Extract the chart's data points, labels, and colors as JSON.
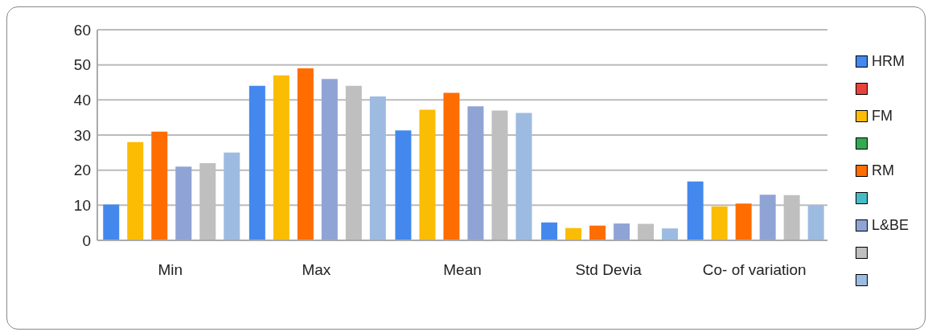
{
  "chart_data": {
    "type": "bar",
    "categories": [
      "Min",
      "Max",
      "Mean",
      "Std Devia",
      "Co- of variation"
    ],
    "series": [
      {
        "name": "HRM",
        "color": "#4488ee",
        "values": [
          10.2,
          44,
          31.3,
          5.1,
          16.8
        ]
      },
      {
        "color": "#e8433a",
        "values": [
          null,
          null,
          null,
          null,
          null
        ]
      },
      {
        "name": "FM",
        "color": "#fbbc04",
        "values": [
          28,
          47,
          37.2,
          3.5,
          9.7
        ]
      },
      {
        "color": "#34a853",
        "values": [
          null,
          null,
          null,
          null,
          null
        ]
      },
      {
        "name": "RM",
        "color": "#ff6d01",
        "values": [
          31,
          49,
          42,
          4.2,
          10.5
        ]
      },
      {
        "color": "#46bdc6",
        "values": [
          null,
          null,
          null,
          null,
          null
        ]
      },
      {
        "name": "L&BE",
        "color": "#8fa4d4",
        "values": [
          21,
          46,
          38.2,
          4.8,
          13
        ]
      },
      {
        "color": "#bfbfbf",
        "values": [
          22,
          44,
          37,
          4.7,
          12.9
        ]
      },
      {
        "color": "#9dbbe0",
        "values": [
          25,
          41,
          36.3,
          3.4,
          9.9
        ]
      }
    ],
    "ylim": [
      0,
      60
    ],
    "yticks": [
      0,
      10,
      20,
      30,
      40,
      50,
      60
    ],
    "grid": "y",
    "legend": "right"
  }
}
